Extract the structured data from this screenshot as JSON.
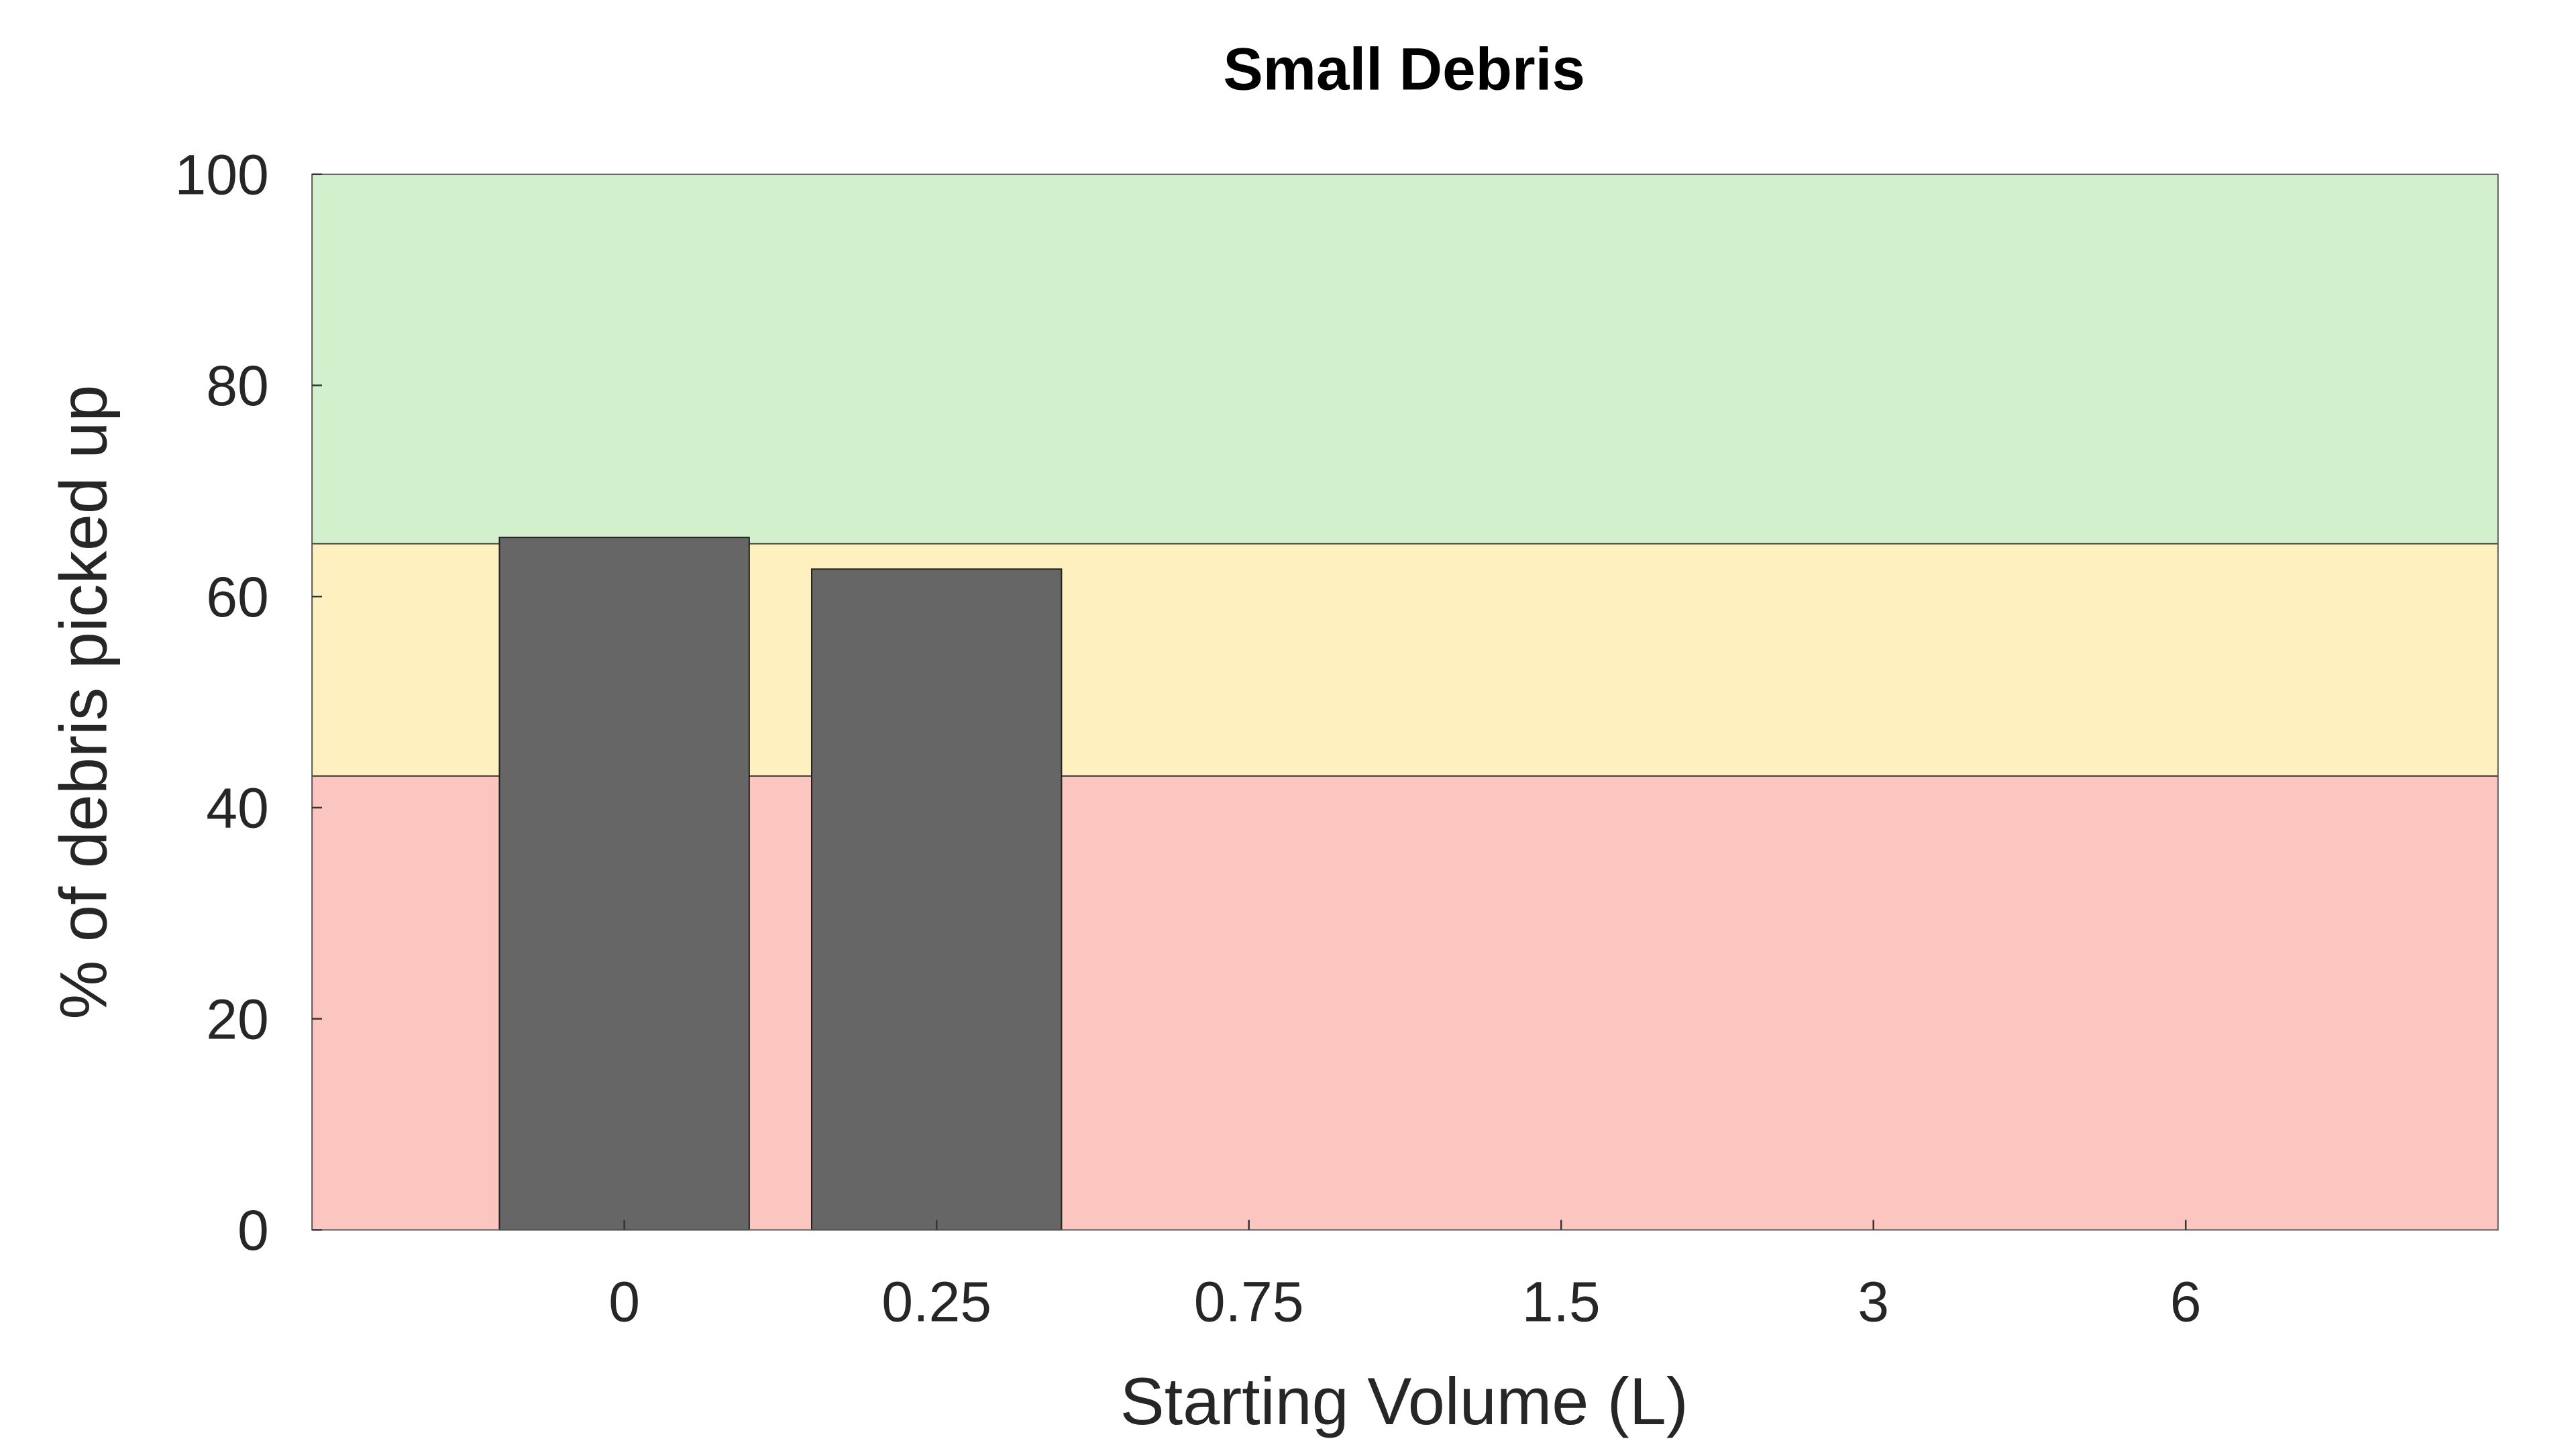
{
  "chart_data": {
    "type": "bar",
    "title": "Small Debris",
    "xlabel": "Starting Volume (L)",
    "ylabel": "% of debris picked up",
    "categories": [
      "0",
      "0.25",
      "0.75",
      "1.5",
      "3",
      "6"
    ],
    "values": [
      65.6,
      62.6,
      null,
      null,
      null,
      null
    ],
    "ylim": [
      0,
      100
    ],
    "yticks": [
      0,
      20,
      40,
      60,
      80,
      100
    ],
    "grid": false,
    "bar_color": "#666666",
    "bands": [
      {
        "from": 0,
        "to": 43,
        "color": "#fac6bf"
      },
      {
        "from": 43,
        "to": 65,
        "color": "#fef0bf"
      },
      {
        "from": 65,
        "to": 100,
        "color": "#d3f0cc"
      }
    ]
  }
}
